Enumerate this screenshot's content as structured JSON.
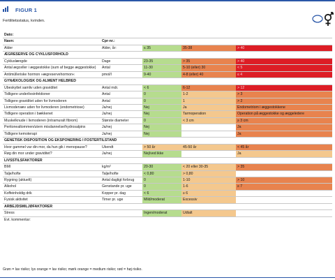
{
  "header": {
    "figure_label": "FIGUR 1"
  },
  "subtitle": "Fertilitetsstatus, kvinden.",
  "colors": {
    "green": "#b6dc8e",
    "light_orange": "#f4c88e",
    "dark_orange": "#e8834e",
    "red": "#dd1d25",
    "accent": "#2a57a8"
  },
  "icons": {
    "figure": "bar-chart-icon",
    "couple": "female-male-symbol-icon"
  },
  "rows": [
    {
      "cells": [
        {
          "t": "Dato:",
          "s": "strong"
        }
      ]
    },
    {
      "cells": [
        {
          "t": "Navn:",
          "s": "strong"
        },
        {
          "t": "Cpr-nr.:",
          "s": "strong"
        }
      ]
    },
    {
      "cells": [
        {
          "t": "Alder"
        },
        {
          "t": "Alder, år:"
        },
        {
          "t": "≤ 35",
          "c": "g"
        },
        {
          "t": "35-38",
          "c": "mo"
        },
        {
          "t": "> 40",
          "c": "r"
        }
      ]
    },
    {
      "section": "ÆGRESERVE OG CYKLUSFORHOLD"
    },
    {
      "cells": [
        {
          "t": "Cykluslængde"
        },
        {
          "t": "Dage"
        },
        {
          "t": "23-35",
          "c": "g"
        },
        {
          "t": "> 35",
          "c": "mo"
        },
        {
          "t": "> 40",
          "c": "r"
        }
      ]
    },
    {
      "cells": [
        {
          "t": "Antal ægceller i æggestokke (sum af begge æggestokke)"
        },
        {
          "t": "Antal"
        },
        {
          "t": "11-30",
          "c": "g"
        },
        {
          "t": "5-10 (eller) 30",
          "c": "mo"
        },
        {
          "t": "< 5",
          "c": "r"
        }
      ]
    },
    {
      "cells": [
        {
          "t": "Antimülleriske hormon »ægreservehormon«"
        },
        {
          "t": "pmol/l"
        },
        {
          "t": "9-40",
          "c": "g"
        },
        {
          "t": "4-8 (eller) 40",
          "c": "mo"
        },
        {
          "t": "≤ 4",
          "c": "r"
        }
      ]
    },
    {
      "section": "GYNÆKOLOGISK OG ALMENT HELBRED"
    },
    {
      "cells": [
        {
          "t": "Ubeskyttet samliv uden graviditet"
        },
        {
          "t": "Antal mdr."
        },
        {
          "t": "< 6",
          "c": "g"
        },
        {
          "t": "6-12",
          "c": "mo"
        },
        {
          "t": "> 12",
          "c": "r"
        }
      ]
    },
    {
      "cells": [
        {
          "t": "Tidligere underlivsinfektioner"
        },
        {
          "t": "Antal"
        },
        {
          "t": "0",
          "c": "g"
        },
        {
          "t": "1-2",
          "c": "lo"
        },
        {
          "t": "> 3",
          "c": "mo"
        }
      ]
    },
    {
      "cells": [
        {
          "t": "Tidligere graviditet uden for livmoderen"
        },
        {
          "t": "Antal"
        },
        {
          "t": "0",
          "c": "g"
        },
        {
          "t": "1",
          "c": "lo"
        },
        {
          "t": "> 2",
          "c": "mo"
        }
      ]
    },
    {
      "cells": [
        {
          "t": "Livmodervæv uden for livmoderen (endometriose)"
        },
        {
          "t": "Ja/nej"
        },
        {
          "t": "Nej",
          "c": "g"
        },
        {
          "t": "Ja",
          "c": "lo"
        },
        {
          "t": "Endometriom i æggestokkene",
          "c": "mo"
        }
      ]
    },
    {
      "cells": [
        {
          "t": "Tidligere operation i bækkenet"
        },
        {
          "t": "Ja/nej"
        },
        {
          "t": "Nej",
          "c": "g"
        },
        {
          "t": "Tarmoperation",
          "c": "lo"
        },
        {
          "t": "Operation på æggestokke og æggeledere",
          "c": "mo"
        }
      ]
    },
    {
      "cells": [
        {
          "t": "Muskelknude i livmoderen (intramuralt fibrom)"
        },
        {
          "t": "Største diameter"
        },
        {
          "t": "0",
          "c": "g"
        },
        {
          "t": "< 3 cm",
          "c": "lo"
        },
        {
          "t": "≥ 3 cm",
          "c": "mo"
        }
      ]
    },
    {
      "cells": [
        {
          "t": "Peritonealtommen/utern misdannelse/hydrosalpinx"
        },
        {
          "t": "Ja/nej"
        },
        {
          "t": "Nej",
          "c": "g"
        },
        {
          "t": ""
        },
        {
          "t": "Ja",
          "c": "mo"
        }
      ]
    },
    {
      "cells": [
        {
          "t": "Tidligere kemoterapi"
        },
        {
          "t": "Ja/nej"
        },
        {
          "t": "Nej",
          "c": "g"
        },
        {
          "t": ""
        },
        {
          "t": "Ja",
          "c": "mo"
        }
      ]
    },
    {
      "section": "GENETISK DISPOSITION OG EKSPONERING I FOSTERTILSTAND"
    },
    {
      "cells": [
        {
          "t": "Hvor gammel var din mor, da hun gik i menopause?"
        },
        {
          "t": "Ukendt"
        },
        {
          "t": "> 50 år",
          "c": "lo"
        },
        {
          "t": "45-50 år",
          "c": "lo"
        },
        {
          "t": "< 45 år",
          "c": "mo"
        }
      ]
    },
    {
      "cells": [
        {
          "t": "Røg din mor under graviditet?"
        },
        {
          "t": "Ja/nej"
        },
        {
          "t": "Nej/ved ikke",
          "c": "g"
        },
        {
          "t": ""
        },
        {
          "t": "Ja",
          "c": "lo"
        }
      ]
    },
    {
      "section": "LIVSSTILSFAKTORER"
    },
    {
      "cells": [
        {
          "t": "BMI"
        },
        {
          "t": "kg/m²"
        },
        {
          "t": "20-30",
          "c": "g"
        },
        {
          "t": "< 20 eller 30-35",
          "c": "lo"
        },
        {
          "t": "> 35",
          "c": "mo"
        }
      ]
    },
    {
      "cells": [
        {
          "t": "Talje/hofte"
        },
        {
          "t": "Talje/hofte"
        },
        {
          "t": "< 0,80",
          "c": "g"
        },
        {
          "t": "> 0,80",
          "c": "lo"
        },
        {
          "t": ""
        }
      ]
    },
    {
      "cells": [
        {
          "t": "Rygning (aktuelt)"
        },
        {
          "t": "Antal dagligt forbrug"
        },
        {
          "t": "0",
          "c": "g"
        },
        {
          "t": "1-10",
          "c": "lo"
        },
        {
          "t": "> 10",
          "c": "mo"
        }
      ]
    },
    {
      "cells": [
        {
          "t": "Alkohol"
        },
        {
          "t": "Genstande pr. uge"
        },
        {
          "t": "0",
          "c": "g"
        },
        {
          "t": "1-6",
          "c": "lo"
        },
        {
          "t": "≥ 7",
          "c": "mo"
        }
      ]
    },
    {
      "cells": [
        {
          "t": "Koffeinholdig drik"
        },
        {
          "t": "Kopper pr. dag"
        },
        {
          "t": "< 6",
          "c": "g"
        },
        {
          "t": "≥ 6",
          "c": "lo"
        },
        {
          "t": ""
        }
      ]
    },
    {
      "cells": [
        {
          "t": "Fysisk aktivitet"
        },
        {
          "t": "Timer pr. uge"
        },
        {
          "t": "Mild/moderat",
          "c": "g"
        },
        {
          "t": "Excessiv",
          "c": "lo"
        },
        {
          "t": ""
        }
      ]
    },
    {
      "section": "ARBEJDSMILJØFAKTORER"
    },
    {
      "cells": [
        {
          "t": "Stress"
        },
        {
          "t": ""
        },
        {
          "t": "Ingen/moderat",
          "c": "g"
        },
        {
          "t": "Udtalt",
          "c": "lo"
        },
        {
          "t": ""
        }
      ]
    },
    {
      "cells": [
        {
          "t": "Evt. kommentar:"
        }
      ]
    }
  ],
  "legend": "Grøn = lav risiko; lys orange = lav risiko; mørk orange = medium risiko; rød = høj risiko."
}
